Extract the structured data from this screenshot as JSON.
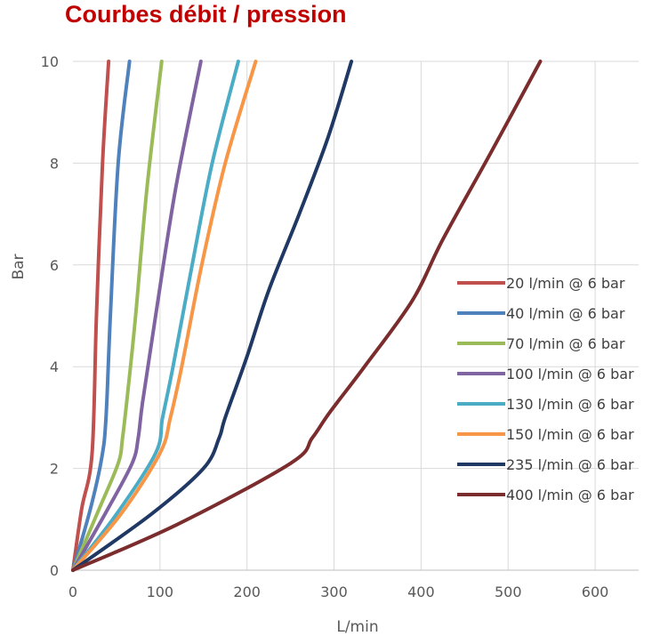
{
  "chart_data": {
    "type": "line",
    "title": "Courbes débit / pression",
    "xlabel": "L/min",
    "ylabel": "Bar",
    "xlim": [
      0,
      650
    ],
    "ylim": [
      0,
      10
    ],
    "x_ticks": [
      0,
      100,
      200,
      300,
      400,
      500,
      600
    ],
    "y_ticks": [
      0,
      2,
      4,
      6,
      8,
      10
    ],
    "grid": true,
    "legend_position": "right",
    "series": [
      {
        "name": "20 l/min @ 6 bar",
        "color": "#c0504d",
        "points": [
          [
            0,
            0
          ],
          [
            10,
            1.2
          ],
          [
            22,
            2.3
          ],
          [
            27,
            5
          ],
          [
            34,
            8
          ],
          [
            41,
            10
          ]
        ]
      },
      {
        "name": "40 l/min @ 6 bar",
        "color": "#4f81bd",
        "points": [
          [
            0,
            0
          ],
          [
            20,
            1.2
          ],
          [
            33,
            2.2
          ],
          [
            38,
            3
          ],
          [
            43,
            5
          ],
          [
            52,
            8
          ],
          [
            65,
            10
          ]
        ]
      },
      {
        "name": "70 l/min @ 6 bar",
        "color": "#9bbb59",
        "points": [
          [
            0,
            0
          ],
          [
            30,
            1.2
          ],
          [
            52,
            2.1
          ],
          [
            57,
            2.6
          ],
          [
            63,
            3.5
          ],
          [
            72,
            5
          ],
          [
            85,
            7.5
          ],
          [
            102,
            10
          ]
        ]
      },
      {
        "name": "100 l/min @ 6 bar",
        "color": "#8064a2",
        "points": [
          [
            0,
            0
          ],
          [
            40,
            1.2
          ],
          [
            68,
            2.1
          ],
          [
            75,
            2.6
          ],
          [
            80,
            3.3
          ],
          [
            95,
            5
          ],
          [
            118,
            7.5
          ],
          [
            147,
            10
          ]
        ]
      },
      {
        "name": "130 l/min @ 6 bar",
        "color": "#4bacc6",
        "points": [
          [
            0,
            0
          ],
          [
            50,
            1.1
          ],
          [
            95,
            2.3
          ],
          [
            103,
            3
          ],
          [
            115,
            4
          ],
          [
            137,
            6
          ],
          [
            160,
            8
          ],
          [
            190,
            10
          ]
        ]
      },
      {
        "name": "150 l/min @ 6 bar",
        "color": "#f79646",
        "points": [
          [
            0,
            0
          ],
          [
            55,
            1.1
          ],
          [
            100,
            2.3
          ],
          [
            112,
            3
          ],
          [
            125,
            4
          ],
          [
            148,
            6
          ],
          [
            175,
            8
          ],
          [
            210,
            10
          ]
        ]
      },
      {
        "name": "235 l/min @ 6 bar",
        "color": "#1f3864",
        "points": [
          [
            0,
            0
          ],
          [
            90,
            1.1
          ],
          [
            150,
            2
          ],
          [
            168,
            2.6
          ],
          [
            175,
            3
          ],
          [
            200,
            4.2
          ],
          [
            225,
            5.5
          ],
          [
            260,
            7
          ],
          [
            293,
            8.5
          ],
          [
            320,
            10
          ]
        ]
      },
      {
        "name": "400 l/min @ 6 bar",
        "color": "#7b2c2c",
        "points": [
          [
            0,
            0
          ],
          [
            120,
            0.9
          ],
          [
            250,
            2.1
          ],
          [
            275,
            2.6
          ],
          [
            295,
            3.1
          ],
          [
            335,
            4
          ],
          [
            390,
            5.3
          ],
          [
            425,
            6.5
          ],
          [
            480,
            8.2
          ],
          [
            537,
            10
          ]
        ]
      }
    ]
  }
}
